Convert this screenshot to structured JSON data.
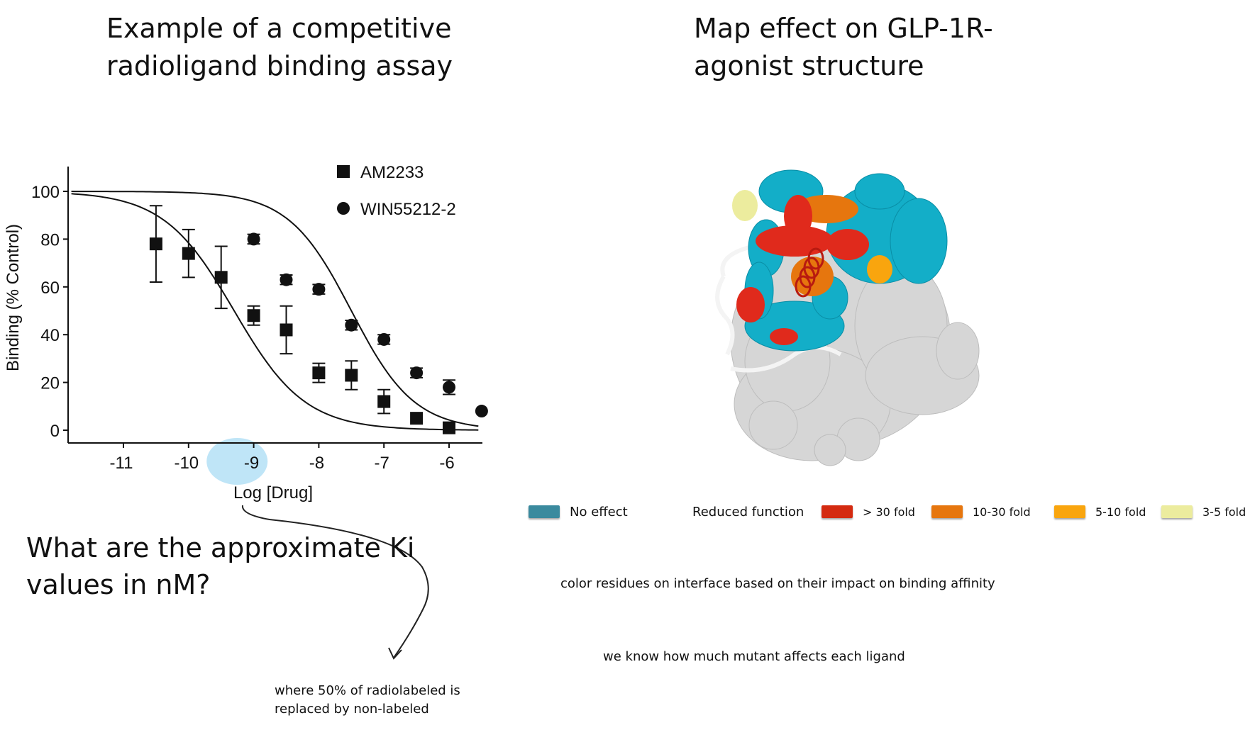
{
  "titles": {
    "left_line1": "Example of a competitive",
    "left_line2": "radioligand binding assay",
    "right_line1": "Map effect on GLP-1R-",
    "right_line2": "agonist structure"
  },
  "question": {
    "line1": "What are the approximate Ki",
    "line2": "values in nM?"
  },
  "notes": {
    "fifty_line1": "where 50% of radiolabeled is",
    "fifty_line2": "replaced by non-labeled",
    "color_residues": "color residues on interface based on their impact on binding affinity",
    "mutant": "we know how much mutant affects each ligand"
  },
  "legend": {
    "no_effect": "No effect",
    "reduced_function": "Reduced function",
    "gt30": "> 30 fold",
    "fold_10_30": "10-30 fold",
    "fold_5_10": "5-10 fold",
    "fold_3_5": "3-5 fold",
    "colors": {
      "no_effect": "#3a8a9e",
      "gt30": "#d42a10",
      "fold_10_30": "#e6760e",
      "fold_5_10": "#f9a50e",
      "fold_3_5": "#ecec9e"
    }
  },
  "chart_data": {
    "type": "scatter",
    "xlabel": "Log [Drug]",
    "ylabel": "Binding (% Control)",
    "xlim": [
      -12,
      -5.5
    ],
    "ylim": [
      0,
      100
    ],
    "xticks": [
      -11,
      -10,
      -9,
      -8,
      -7,
      -6
    ],
    "yticks": [
      0,
      20,
      40,
      60,
      80,
      100
    ],
    "legend_position": "top-right",
    "series": [
      {
        "name": "AM2233",
        "marker": "square",
        "x": [
          -10.5,
          -10,
          -9.5,
          -9,
          -8.5,
          -8,
          -7.5,
          -7,
          -6.5,
          -6
        ],
        "y": [
          78,
          74,
          64,
          48,
          42,
          24,
          23,
          12,
          5,
          1
        ],
        "err": [
          16,
          10,
          13,
          4,
          10,
          4,
          6,
          5,
          0,
          0
        ],
        "fit_logIC50": -9.3
      },
      {
        "name": "WIN55212-2",
        "marker": "circle",
        "x": [
          -9,
          -8.5,
          -8,
          -7.5,
          -7,
          -6.5,
          -6,
          -5.5
        ],
        "y": [
          80,
          63,
          59,
          44,
          38,
          24,
          18,
          8
        ],
        "err": [
          2,
          2,
          2,
          2,
          2,
          2,
          3,
          0
        ],
        "fit_logIC50": -7.5
      }
    ],
    "highlight": {
      "x": -9.2,
      "color": "#b8e2f6"
    }
  }
}
